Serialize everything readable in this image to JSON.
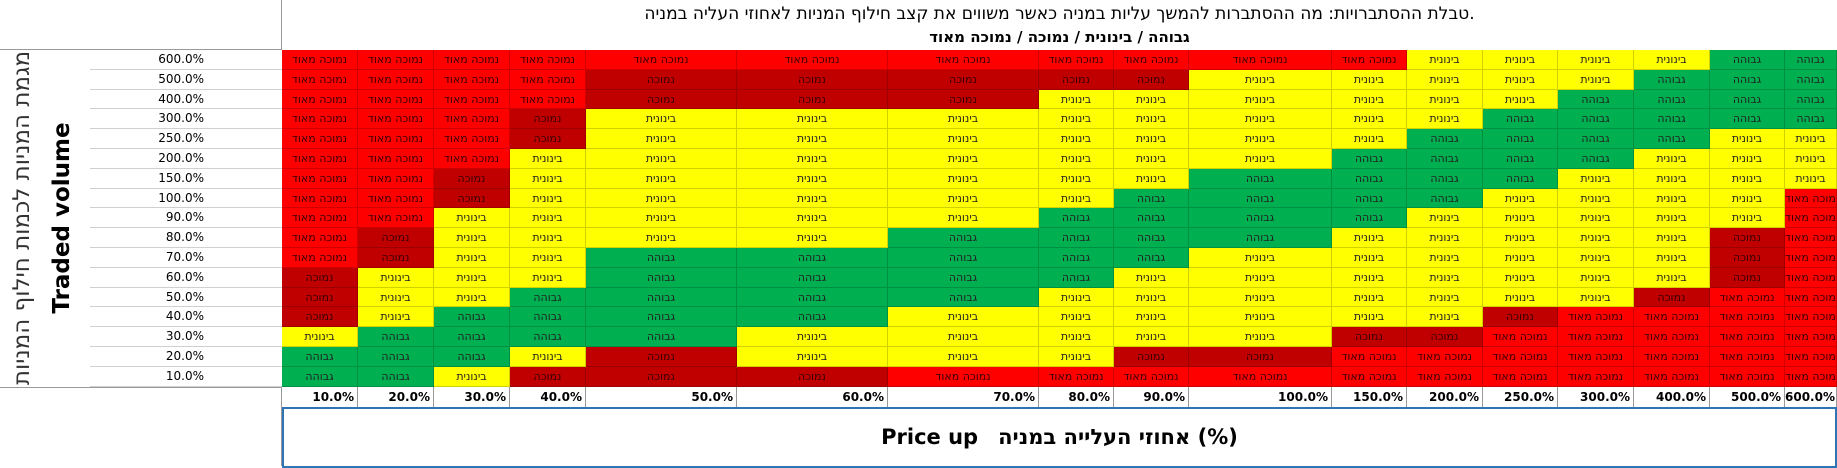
{
  "title": "טבלת ההסתברויות: מה ההסתברות להמשך עליות במניה כאשר משווים את קצב חילוף המניות לאחוזי העליה במניה.",
  "legend": "גבוהה / בינונית / נמוכה / נמוכה מאוד",
  "y_axis": {
    "title_en": "Traded volume",
    "title_he": "מגמת המניות לכמות חילוף המניות"
  },
  "x_axis": {
    "title_en": "Price up",
    "title_he": "אחוזי העלייה במניה (%)"
  },
  "colors": {
    "very_low": "#ff0000",
    "low": "#c00000",
    "medium": "#ffff00",
    "high": "#00b050"
  },
  "labels": {
    "very_low": "נמוכה מאוד",
    "low": "נמוכה",
    "medium": "בינונית",
    "high": "גבוהה"
  },
  "rows": [
    "600.0%",
    "500.0%",
    "400.0%",
    "300.0%",
    "250.0%",
    "200.0%",
    "150.0%",
    "100.0%",
    "90.0%",
    "80.0%",
    "70.0%",
    "60.0%",
    "50.0%",
    "40.0%",
    "30.0%",
    "20.0%",
    "10.0%"
  ],
  "cols": [
    "10.0%",
    "20.0%",
    "30.0%",
    "40.0%",
    "50.0%",
    "60.0%",
    "70.0%",
    "80.0%",
    "90.0%",
    "100.0%",
    "150.0%",
    "200.0%",
    "250.0%",
    "300.0%",
    "400.0%",
    "500.0%",
    "600.0%"
  ],
  "grid": [
    [
      "V",
      "V",
      "V",
      "V",
      "V",
      "V",
      "V",
      "V",
      "V",
      "V",
      "V",
      "M",
      "M",
      "M",
      "M",
      "H",
      "H"
    ],
    [
      "V",
      "V",
      "V",
      "V",
      "L",
      "L",
      "L",
      "L",
      "L",
      "M",
      "M",
      "M",
      "M",
      "M",
      "H",
      "H",
      "H"
    ],
    [
      "V",
      "V",
      "V",
      "V",
      "L",
      "L",
      "L",
      "M",
      "M",
      "M",
      "M",
      "M",
      "M",
      "H",
      "H",
      "H",
      "H"
    ],
    [
      "V",
      "V",
      "V",
      "L",
      "M",
      "M",
      "M",
      "M",
      "M",
      "M",
      "M",
      "M",
      "H",
      "H",
      "H",
      "H",
      "H"
    ],
    [
      "V",
      "V",
      "V",
      "L",
      "M",
      "M",
      "M",
      "M",
      "M",
      "M",
      "M",
      "H",
      "H",
      "H",
      "H",
      "M",
      "M"
    ],
    [
      "V",
      "V",
      "V",
      "M",
      "M",
      "M",
      "M",
      "M",
      "M",
      "M",
      "H",
      "H",
      "H",
      "H",
      "M",
      "M",
      "M"
    ],
    [
      "V",
      "V",
      "L",
      "M",
      "M",
      "M",
      "M",
      "M",
      "M",
      "H",
      "H",
      "H",
      "H",
      "M",
      "M",
      "M",
      "M"
    ],
    [
      "V",
      "V",
      "L",
      "M",
      "M",
      "M",
      "M",
      "M",
      "H",
      "H",
      "H",
      "H",
      "M",
      "M",
      "M",
      "M",
      "V"
    ],
    [
      "V",
      "V",
      "M",
      "M",
      "M",
      "M",
      "M",
      "H",
      "H",
      "H",
      "H",
      "M",
      "M",
      "M",
      "M",
      "M",
      "V"
    ],
    [
      "V",
      "L",
      "M",
      "M",
      "M",
      "M",
      "H",
      "H",
      "H",
      "H",
      "M",
      "M",
      "M",
      "M",
      "M",
      "L",
      "V"
    ],
    [
      "V",
      "L",
      "M",
      "M",
      "H",
      "H",
      "H",
      "H",
      "H",
      "M",
      "M",
      "M",
      "M",
      "M",
      "M",
      "L",
      "V"
    ],
    [
      "L",
      "M",
      "M",
      "M",
      "H",
      "H",
      "H",
      "H",
      "M",
      "M",
      "M",
      "M",
      "M",
      "M",
      "M",
      "L",
      "V"
    ],
    [
      "L",
      "M",
      "M",
      "H",
      "H",
      "H",
      "H",
      "M",
      "M",
      "M",
      "M",
      "M",
      "M",
      "M",
      "L",
      "V",
      "V"
    ],
    [
      "L",
      "M",
      "H",
      "H",
      "H",
      "H",
      "M",
      "M",
      "M",
      "M",
      "M",
      "M",
      "L",
      "V",
      "V",
      "V",
      "V"
    ],
    [
      "M",
      "H",
      "H",
      "H",
      "H",
      "M",
      "M",
      "M",
      "M",
      "M",
      "L",
      "L",
      "V",
      "V",
      "V",
      "V",
      "V"
    ],
    [
      "H",
      "H",
      "H",
      "M",
      "L",
      "M",
      "M",
      "M",
      "L",
      "L",
      "V",
      "V",
      "V",
      "V",
      "V",
      "V",
      "V"
    ],
    [
      "H",
      "H",
      "M",
      "L",
      "L",
      "L",
      "V",
      "V",
      "V",
      "V",
      "V",
      "V",
      "V",
      "V",
      "V",
      "V",
      "V"
    ]
  ]
}
